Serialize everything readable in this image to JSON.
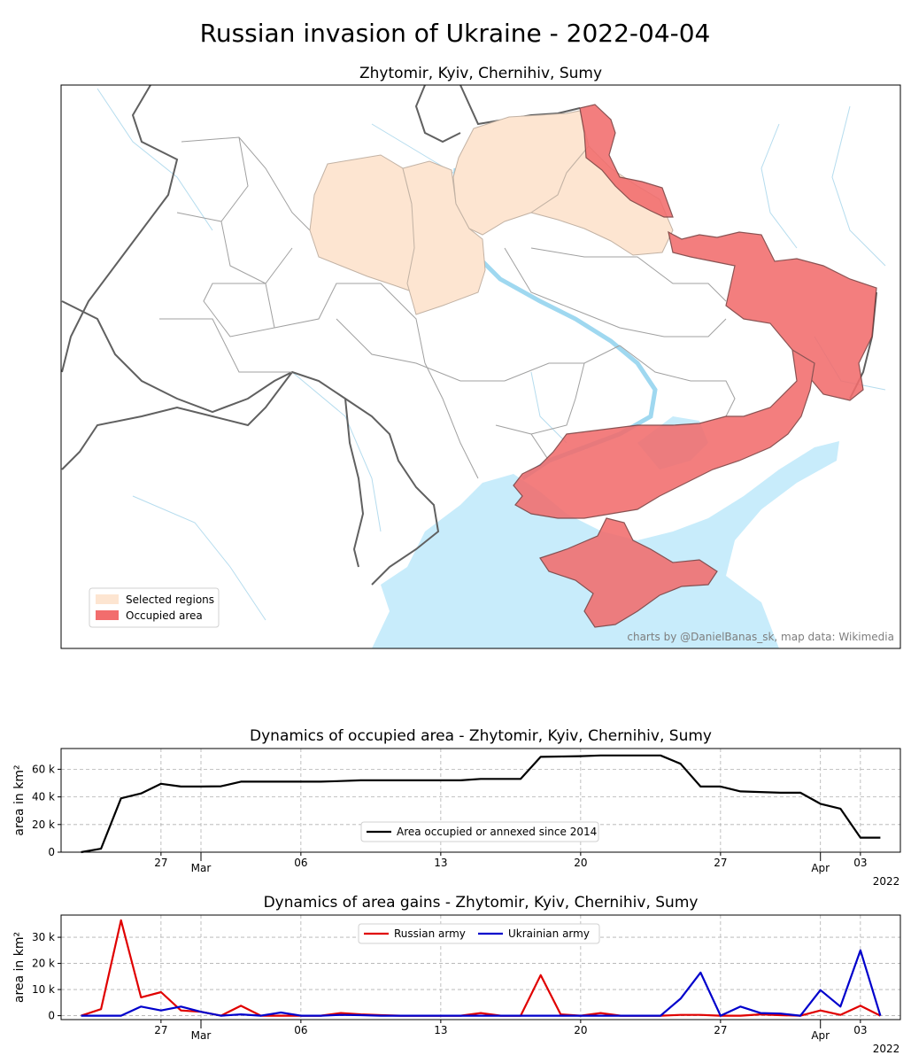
{
  "page_title": "Russian invasion of Ukraine - 2022-04-04",
  "map": {
    "title": "Zhytomir, Kyiv, Chernihiv, Sumy",
    "legend": [
      {
        "label": "Selected regions",
        "color": "#fde5d1"
      },
      {
        "label": "Occupied area",
        "color": "#f26d6d"
      }
    ],
    "credit": "charts by @DanielBanas_sk, map data: Wikimedia",
    "colors": {
      "selected": "#fde5d1",
      "occupied": "#f26d6d",
      "water": "#c8ecfb",
      "border_country": "#606060",
      "border_region": "#a0a0a0"
    }
  },
  "chart_data": [
    {
      "type": "line",
      "title": "Dynamics of occupied area - Zhytomir, Kyiv, Chernihiv, Sumy",
      "ylabel": "area in km²",
      "ylim": [
        0,
        75000
      ],
      "yticks": [
        {
          "value": 0,
          "label": "0"
        },
        {
          "value": 20000,
          "label": "20 k"
        },
        {
          "value": 40000,
          "label": "40 k"
        },
        {
          "value": 60000,
          "label": "60 k"
        }
      ],
      "xlim": [
        "2022-02-22",
        "2022-04-05"
      ],
      "xticks": [
        {
          "date": "2022-02-27",
          "label": "27"
        },
        {
          "date": "2022-03-01",
          "label": "Mar"
        },
        {
          "date": "2022-03-06",
          "label": "06"
        },
        {
          "date": "2022-03-13",
          "label": "13"
        },
        {
          "date": "2022-03-20",
          "label": "20"
        },
        {
          "date": "2022-03-27",
          "label": "27"
        },
        {
          "date": "2022-04-01",
          "label": "Apr"
        },
        {
          "date": "2022-04-03",
          "label": "03"
        }
      ],
      "year_label": "2022",
      "grid": true,
      "legend_position": "lower-center",
      "series": [
        {
          "name": "Area occupied or annexed since 2014",
          "color": "#000000",
          "x": [
            "2022-02-23",
            "2022-02-24",
            "2022-02-25",
            "2022-02-26",
            "2022-02-27",
            "2022-02-28",
            "2022-03-01",
            "2022-03-02",
            "2022-03-03",
            "2022-03-04",
            "2022-03-05",
            "2022-03-06",
            "2022-03-07",
            "2022-03-08",
            "2022-03-09",
            "2022-03-10",
            "2022-03-11",
            "2022-03-12",
            "2022-03-13",
            "2022-03-14",
            "2022-03-15",
            "2022-03-16",
            "2022-03-17",
            "2022-03-18",
            "2022-03-19",
            "2022-03-20",
            "2022-03-21",
            "2022-03-22",
            "2022-03-23",
            "2022-03-24",
            "2022-03-25",
            "2022-03-26",
            "2022-03-27",
            "2022-03-28",
            "2022-03-29",
            "2022-03-30",
            "2022-03-31",
            "2022-04-01",
            "2022-04-02",
            "2022-04-03",
            "2022-04-04"
          ],
          "y": [
            0,
            2500,
            39000,
            42500,
            49500,
            47500,
            47500,
            47700,
            51000,
            51000,
            51000,
            51000,
            51000,
            51500,
            52000,
            52000,
            52000,
            52000,
            52000,
            52000,
            53000,
            53000,
            53000,
            69000,
            69200,
            69500,
            70000,
            70000,
            70000,
            70000,
            64000,
            47500,
            47500,
            44000,
            43500,
            43000,
            43000,
            35000,
            31500,
            10500,
            10500
          ]
        }
      ]
    },
    {
      "type": "line",
      "title": "Dynamics of area gains - Zhytomir, Kyiv, Chernihiv, Sumy",
      "ylabel": "area in km²",
      "ylim": [
        -1500,
        38500
      ],
      "yticks": [
        {
          "value": 0,
          "label": "0"
        },
        {
          "value": 10000,
          "label": "10 k"
        },
        {
          "value": 20000,
          "label": "20 k"
        },
        {
          "value": 30000,
          "label": "30 k"
        }
      ],
      "xlim": [
        "2022-02-22",
        "2022-04-05"
      ],
      "xticks": [
        {
          "date": "2022-02-27",
          "label": "27"
        },
        {
          "date": "2022-03-01",
          "label": "Mar"
        },
        {
          "date": "2022-03-06",
          "label": "06"
        },
        {
          "date": "2022-03-13",
          "label": "13"
        },
        {
          "date": "2022-03-20",
          "label": "20"
        },
        {
          "date": "2022-03-27",
          "label": "27"
        },
        {
          "date": "2022-04-01",
          "label": "Apr"
        },
        {
          "date": "2022-04-03",
          "label": "03"
        }
      ],
      "year_label": "2022",
      "grid": true,
      "legend_position": "upper-center",
      "series": [
        {
          "name": "Russian army",
          "color": "#e00000",
          "x": [
            "2022-02-23",
            "2022-02-24",
            "2022-02-25",
            "2022-02-26",
            "2022-02-27",
            "2022-02-28",
            "2022-03-01",
            "2022-03-02",
            "2022-03-03",
            "2022-03-04",
            "2022-03-05",
            "2022-03-06",
            "2022-03-07",
            "2022-03-08",
            "2022-03-09",
            "2022-03-10",
            "2022-03-11",
            "2022-03-12",
            "2022-03-13",
            "2022-03-14",
            "2022-03-15",
            "2022-03-16",
            "2022-03-17",
            "2022-03-18",
            "2022-03-19",
            "2022-03-20",
            "2022-03-21",
            "2022-03-22",
            "2022-03-23",
            "2022-03-24",
            "2022-03-25",
            "2022-03-26",
            "2022-03-27",
            "2022-03-28",
            "2022-03-29",
            "2022-03-30",
            "2022-03-31",
            "2022-04-01",
            "2022-04-02",
            "2022-04-03",
            "2022-04-04"
          ],
          "y": [
            0,
            2500,
            36500,
            7000,
            9000,
            2000,
            1500,
            0,
            3800,
            0,
            0,
            0,
            0,
            1000,
            500,
            200,
            0,
            0,
            0,
            0,
            1000,
            0,
            0,
            15500,
            500,
            0,
            1000,
            0,
            0,
            0,
            300,
            300,
            0,
            0,
            500,
            200,
            0,
            2000,
            300,
            3800,
            0
          ]
        },
        {
          "name": "Ukrainian army",
          "color": "#0000cc",
          "x": [
            "2022-02-23",
            "2022-02-24",
            "2022-02-25",
            "2022-02-26",
            "2022-02-27",
            "2022-02-28",
            "2022-03-01",
            "2022-03-02",
            "2022-03-03",
            "2022-03-04",
            "2022-03-05",
            "2022-03-06",
            "2022-03-07",
            "2022-03-08",
            "2022-03-09",
            "2022-03-10",
            "2022-03-11",
            "2022-03-12",
            "2022-03-13",
            "2022-03-14",
            "2022-03-15",
            "2022-03-16",
            "2022-03-17",
            "2022-03-18",
            "2022-03-19",
            "2022-03-20",
            "2022-03-21",
            "2022-03-22",
            "2022-03-23",
            "2022-03-24",
            "2022-03-25",
            "2022-03-26",
            "2022-03-27",
            "2022-03-28",
            "2022-03-29",
            "2022-03-30",
            "2022-03-31",
            "2022-04-01",
            "2022-04-02",
            "2022-04-03",
            "2022-04-04"
          ],
          "y": [
            0,
            0,
            0,
            3500,
            2000,
            3500,
            1500,
            0,
            500,
            0,
            1200,
            0,
            0,
            300,
            200,
            0,
            0,
            0,
            0,
            0,
            0,
            0,
            0,
            0,
            0,
            0,
            0,
            0,
            0,
            0,
            6500,
            16500,
            0,
            3500,
            1000,
            800,
            0,
            9800,
            3500,
            25000,
            0
          ]
        }
      ]
    }
  ]
}
